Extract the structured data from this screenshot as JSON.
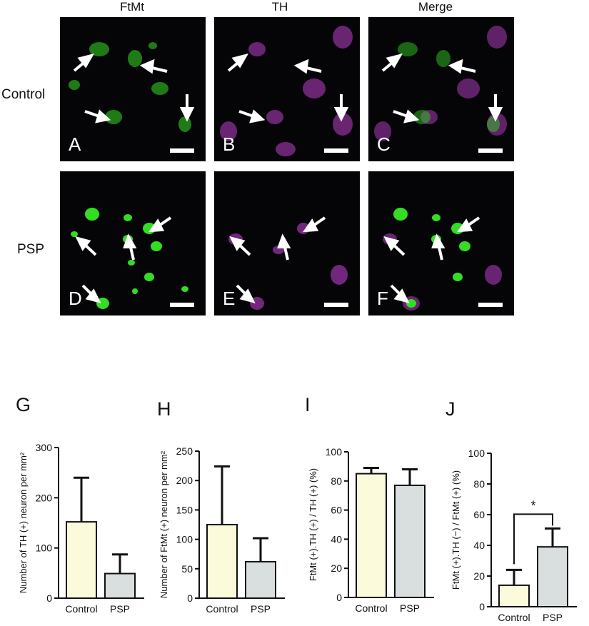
{
  "figure": {
    "column_titles": [
      "FtMt",
      "TH",
      "Merge"
    ],
    "row_labels": [
      "Control",
      "PSP"
    ],
    "panel_letters": [
      "A",
      "B",
      "C",
      "D",
      "E",
      "F"
    ],
    "channel_colors": {
      "ftmt": "#33dd22",
      "th": "#cc44dd",
      "background": "#050507",
      "arrow": "#ffffff"
    }
  },
  "chart_data": [
    {
      "letter": "G",
      "type": "bar",
      "categories": [
        "Control",
        "PSP"
      ],
      "values": [
        152,
        49
      ],
      "error": [
        88,
        38
      ],
      "ylabel": "Number of TH (+) neuron per mm²",
      "ylim": [
        0,
        300
      ],
      "yticks": [
        "0",
        "100",
        "200",
        "300"
      ],
      "colors": [
        "#fbfbdc",
        "#d9dfdf"
      ]
    },
    {
      "letter": "H",
      "type": "bar",
      "categories": [
        "Control",
        "PSP"
      ],
      "values": [
        125,
        62
      ],
      "error": [
        99,
        40
      ],
      "ylabel": "Number of FtMt (+) neuron per mm²",
      "ylim": [
        0,
        250
      ],
      "yticks": [
        "0",
        "50",
        "100",
        "150",
        "200",
        "250"
      ],
      "colors": [
        "#fbfbdc",
        "#d9dfdf"
      ]
    },
    {
      "letter": "I",
      "type": "bar",
      "categories": [
        "Control",
        "PSP"
      ],
      "values": [
        85,
        77
      ],
      "error": [
        4,
        11
      ],
      "ylabel": "FtMt (+).TH (+) / TH (+) (%)",
      "ylim": [
        0,
        100
      ],
      "yticks": [
        "0",
        "20",
        "40",
        "60",
        "80",
        "100"
      ],
      "colors": [
        "#fbfbdc",
        "#d9dfdf"
      ]
    },
    {
      "letter": "J",
      "type": "bar",
      "categories": [
        "Control",
        "PSP"
      ],
      "values": [
        14,
        39
      ],
      "error": [
        10,
        12
      ],
      "ylabel": "FtMt (+).TH (−) / FtMt (+) (%)",
      "ylim": [
        0,
        100
      ],
      "yticks": [
        "0",
        "20",
        "40",
        "60",
        "80",
        "100"
      ],
      "colors": [
        "#fbfbdc",
        "#d9dfdf"
      ],
      "significance": "*"
    }
  ]
}
